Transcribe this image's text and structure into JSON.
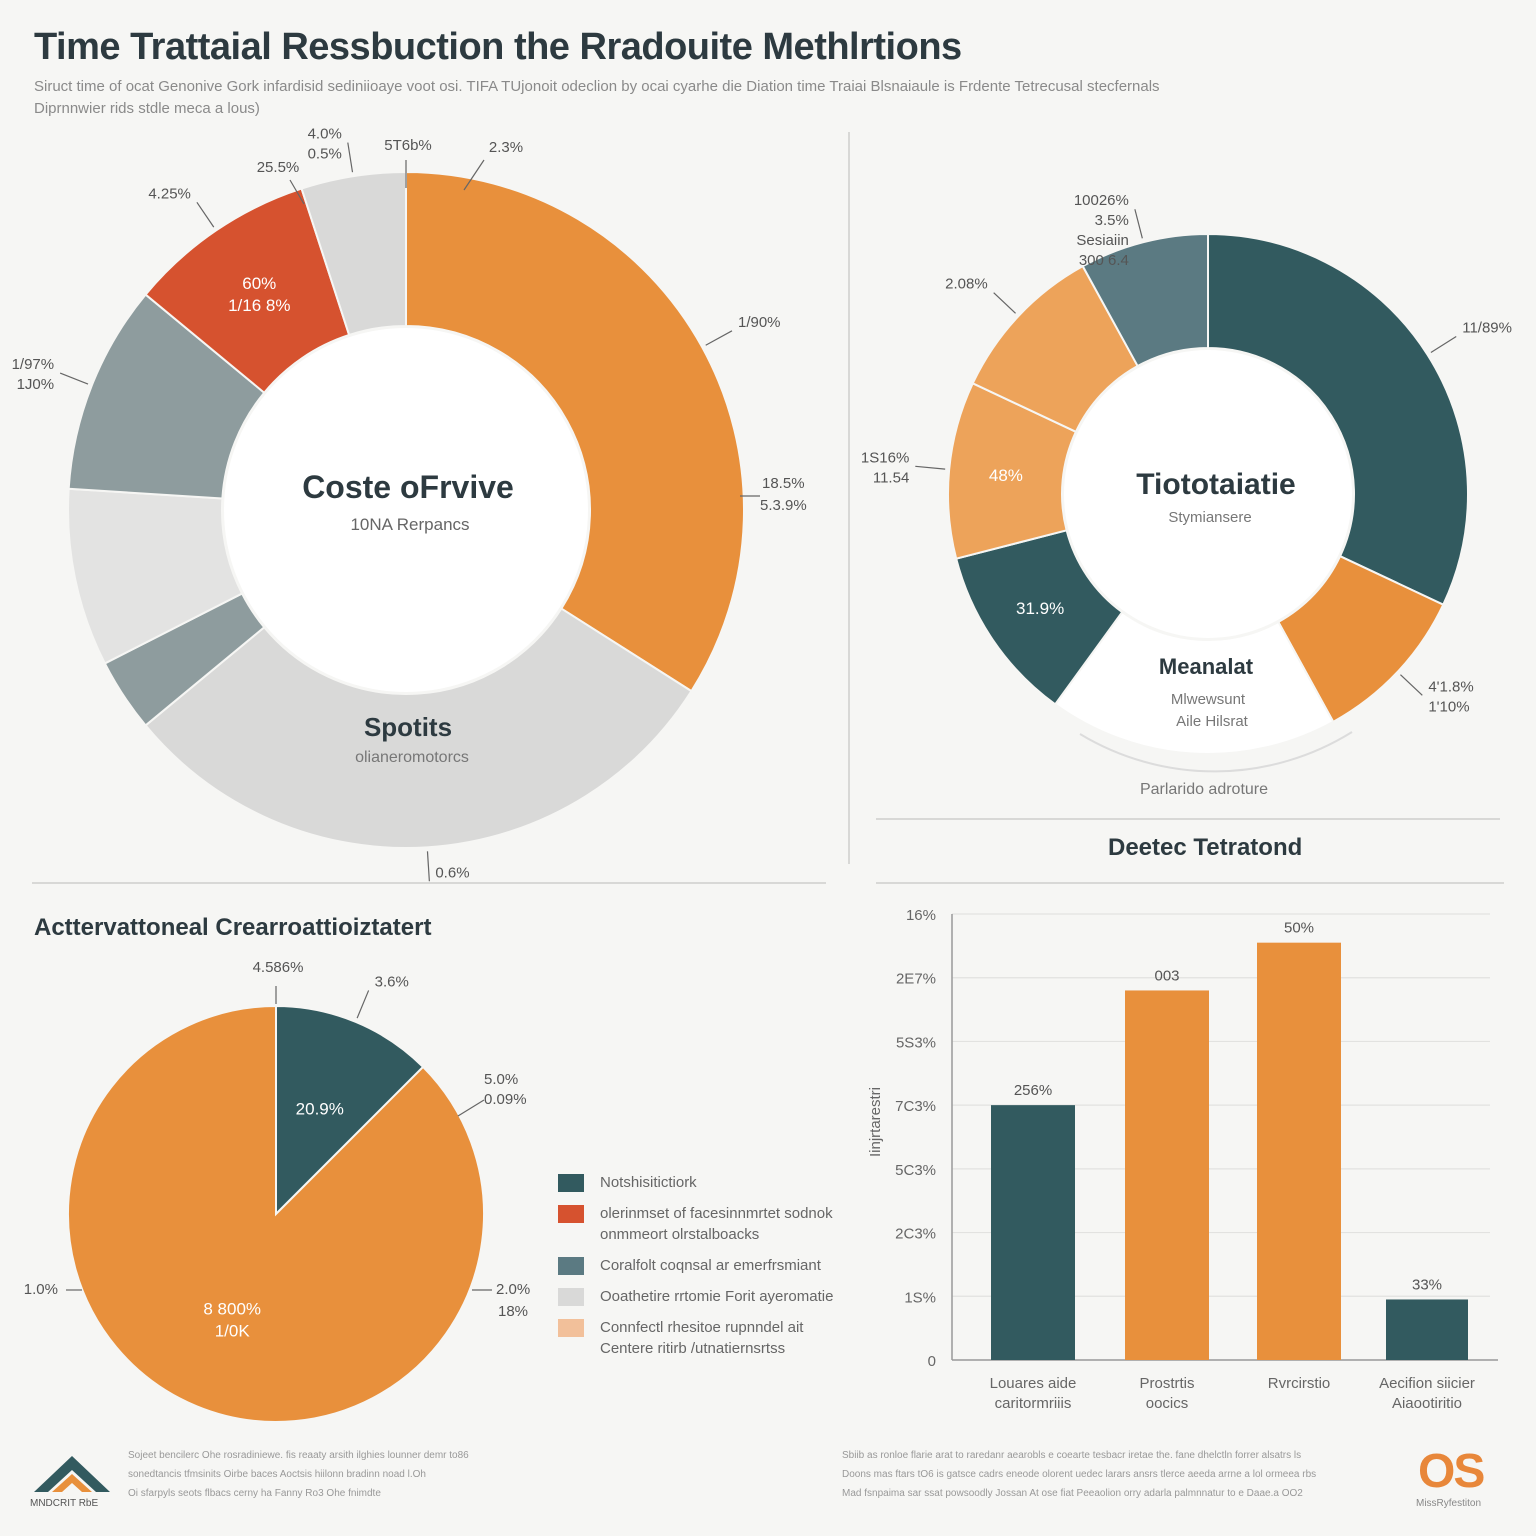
{
  "header": {
    "title": "Time Trattaial Ressbuction the Rradouite Methlrtions",
    "subtitle_line1": "Siruct time of ocat Genonive Gork infardisid sediniioaye voot osi. TIFA TUjonoit odeclion by ocai cyarhe die Diation time Traiai Blsnaiaule is Frdente Tetrecusal stecfernals",
    "subtitle_line2": "Diprnnwier rids stdle meca a lous)"
  },
  "colors": {
    "orange": "#e8903c",
    "light_orange": "#eda35a",
    "red": "#d6522f",
    "dark_teal": "#325a5f",
    "slate": "#5b7a82",
    "gray": "#8e9c9e",
    "light_gray": "#d9d9d8",
    "pale_gray": "#e3e3e2"
  },
  "chart_data": [
    {
      "type": "pie",
      "variant": "donut",
      "center_title": "Coste oFrvive",
      "center_subtitle": "10NA Rerpancs",
      "inner_label_title": "Spotits",
      "inner_label_subtitle": "olianeromotorcs",
      "slices": [
        {
          "value": 34.0,
          "color": "orange",
          "labels": [
            "1/90%"
          ]
        },
        {
          "value": 30.0,
          "color": "light_gray",
          "labels": [
            "0.6%"
          ]
        },
        {
          "value": 3.5,
          "color": "gray"
        },
        {
          "value": 8.5,
          "color": "pale_gray"
        },
        {
          "value": 10.0,
          "color": "gray",
          "labels": [
            "1/97%",
            "1J0%"
          ]
        },
        {
          "value": 9.0,
          "color": "red",
          "labels": [
            "4.25%"
          ],
          "inside_labels": [
            "60%",
            "1/16 8%"
          ]
        },
        {
          "value": 5.0,
          "color": "light_gray",
          "labels": [
            "4.0%",
            "0.5%"
          ]
        }
      ],
      "callouts": [
        "5T6b%",
        "2.3%",
        "25.5%",
        "18.5%",
        "5.3.9%"
      ]
    },
    {
      "type": "pie",
      "variant": "donut",
      "center_title": "Tiototaiatie",
      "center_subtitle": "Stymiansere",
      "inner_label_title": "Meanalat",
      "inner_label_subtitle_1": "Mlwewsunt",
      "inner_label_subtitle_2": "Aile Hilsrat",
      "bottom_label": "Parlarido adroture",
      "section_title": "Deetec Tetratond",
      "slices": [
        {
          "value": 32.0,
          "color": "dark_teal",
          "labels": [
            "11/89%"
          ]
        },
        {
          "value": 10.0,
          "color": "orange",
          "labels": [
            "4'1.8%",
            "1'10%"
          ]
        },
        {
          "value": 18.0,
          "color": "white"
        },
        {
          "value": 11.0,
          "color": "dark_teal",
          "inside_labels": [
            "31.9%"
          ]
        },
        {
          "value": 11.0,
          "color": "light_orange",
          "labels": [
            "1S16%",
            "11.54"
          ],
          "inside_labels": [
            "48%"
          ]
        },
        {
          "value": 10.0,
          "color": "light_orange",
          "labels": [
            "2.08%"
          ]
        },
        {
          "value": 8.0,
          "color": "slate",
          "labels": [
            "10026%",
            "3.5%",
            "Sesiaiin",
            "300 6.4"
          ]
        }
      ]
    },
    {
      "type": "pie",
      "title": "Acttervattoneal Crearroattioiztatert",
      "slices": [
        {
          "value": 12.5,
          "color": "dark_teal",
          "labels": [
            "3.6%"
          ],
          "inside_labels": [
            "20.9%"
          ]
        },
        {
          "value": 87.5,
          "color": "orange",
          "inside_labels": [
            "8 800%",
            "1/0K"
          ]
        }
      ],
      "callouts": [
        "4.586%",
        "5.0%",
        "0.09%",
        "1.0%",
        "2.0%",
        "18%"
      ],
      "legend": [
        {
          "color": "dark_teal",
          "lines": [
            "Notshisitictiork"
          ]
        },
        {
          "color": "red",
          "lines": [
            "olerinmset of facesinnmrtet sodnok",
            "onmmeort olrstalboacks"
          ]
        },
        {
          "color": "slate",
          "lines": [
            "Coralfolt coqnsal ar emerfrsmiant"
          ]
        },
        {
          "color": "light_gray",
          "lines": [
            "Ooathetire rrtomie Forit ayeromatie"
          ]
        },
        {
          "color": "pale_orange",
          "lines": [
            "Connfectl rhesitoe rupnndel ait",
            "Centere ritirb /utnatiernsrtss"
          ]
        }
      ]
    },
    {
      "type": "bar",
      "ylabel": "Iinjrtarestri",
      "y_tick_labels": [
        "0",
        "1S%",
        "2C3%",
        "5C3%",
        "7C3%",
        "5S3%",
        "2E7%",
        "16%"
      ],
      "ylim": [
        0,
        7
      ],
      "categories": [
        "Louares aide caritormriiis",
        "Prostrtis oocics",
        "Rvrcirstio",
        "Aecifion siicier Aiaootiritio"
      ],
      "values": [
        4.0,
        5.8,
        6.55,
        0.95
      ],
      "bar_colors": [
        "dark_teal",
        "orange",
        "orange",
        "dark_teal"
      ],
      "data_labels": [
        "256%",
        "003",
        "50%",
        "33%"
      ]
    }
  ],
  "footer": {
    "left_lines": [
      "Sojeet bencilerc Ohe rosradiniewe. fis reaaty arsith ilghies lounner demr to86",
      "sonedtancis tfmsinits Oirbe baces Aoctsis hiilonn bradinn noad l.Oh",
      "Oi sfarpyls seots flbacs cerny ha Fanny Ro3 Ohe fnimdte"
    ],
    "right_lines": [
      "Sbiib as ronloe flarie arat to raredanr aearobls e coearte tesbacr iretae the. fane dhelctln forrer alsatrs ls",
      "Doons mas ftars tO6 is gatsce cadrs eneode olorent uedec larars ansrs tlerce aeeda arrne a lol ormeea rbs",
      "Mad fsnpaima sar ssat powsoodly Jossan At ose fiat Peeaolion orry adarla palmnnatur to e Daae.a OO2"
    ],
    "logo_left_label": "MNDCRIT RbE",
    "logo_right_text": "OS",
    "logo_right_label": "MissRyfestiton"
  }
}
